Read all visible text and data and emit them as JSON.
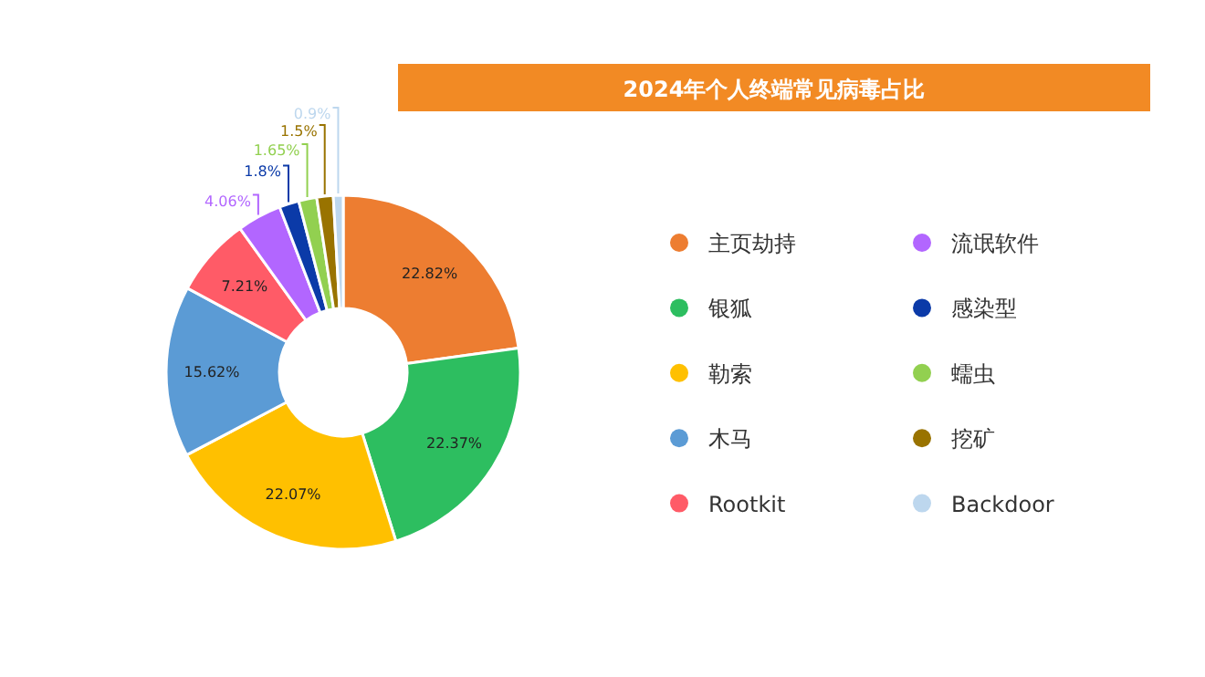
{
  "chart_data": {
    "type": "donut",
    "title": "2024年个人终端常见病毒占比",
    "categories": [
      "主页劫持",
      "银狐",
      "勒索",
      "木马",
      "Rootkit",
      "流氓软件",
      "感染型",
      "蠕虫",
      "挖矿",
      "Backdoor"
    ],
    "values": [
      22.82,
      22.37,
      22.07,
      15.62,
      7.21,
      4.06,
      1.8,
      1.65,
      1.5,
      0.9
    ],
    "colors": [
      "#ed7d31",
      "#2dbe60",
      "#ffc000",
      "#5b9bd5",
      "#ff5b67",
      "#b266ff",
      "#0b3aa8",
      "#92d050",
      "#997300",
      "#bdd7ee"
    ],
    "value_labels": [
      "22.82%",
      "22.37%",
      "22.07%",
      "15.62%",
      "7.21%",
      "4.06%",
      "1.8%",
      "1.65%",
      "1.5%",
      "0.9%"
    ],
    "legend": "right"
  }
}
